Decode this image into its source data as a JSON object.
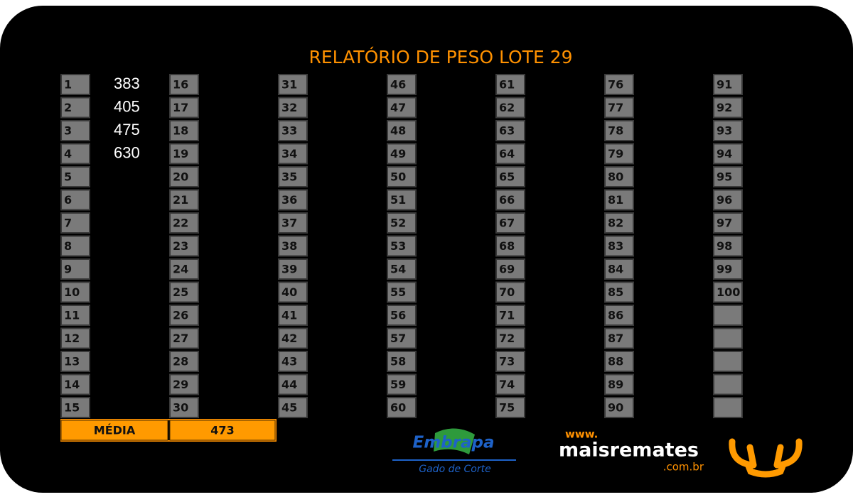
{
  "header": {
    "title": "RELATÓRIO DE PESO LOTE 29"
  },
  "columns": [
    {
      "lots": [
        1,
        2,
        3,
        4,
        5,
        6,
        7,
        8,
        9,
        10,
        11,
        12,
        13,
        14,
        15
      ],
      "weights": [
        383,
        405,
        475,
        630
      ]
    },
    {
      "lots": [
        16,
        17,
        18,
        19,
        20,
        21,
        22,
        23,
        24,
        25,
        26,
        27,
        28,
        29,
        30
      ]
    },
    {
      "lots": [
        31,
        32,
        33,
        34,
        35,
        36,
        37,
        38,
        39,
        40,
        41,
        42,
        43,
        44,
        45
      ]
    },
    {
      "lots": [
        46,
        47,
        48,
        49,
        50,
        51,
        52,
        53,
        54,
        55,
        56,
        57,
        58,
        59,
        60
      ]
    },
    {
      "lots": [
        61,
        62,
        63,
        64,
        65,
        66,
        67,
        68,
        69,
        70,
        71,
        72,
        73,
        74,
        75
      ]
    },
    {
      "lots": [
        76,
        77,
        78,
        79,
        80,
        81,
        82,
        83,
        84,
        85,
        86,
        87,
        88,
        89,
        90
      ]
    },
    {
      "lots": [
        91,
        92,
        93,
        94,
        95,
        96,
        97,
        98,
        99,
        100
      ]
    }
  ],
  "average": {
    "label": "MÉDIA",
    "value": 473
  },
  "logos": {
    "embrapa": "Embrapa",
    "embrapa_sub": "Gado de Corte",
    "site_prefix": "www.",
    "site_name": "maisremates",
    "site_suffix": ".com.br"
  }
}
